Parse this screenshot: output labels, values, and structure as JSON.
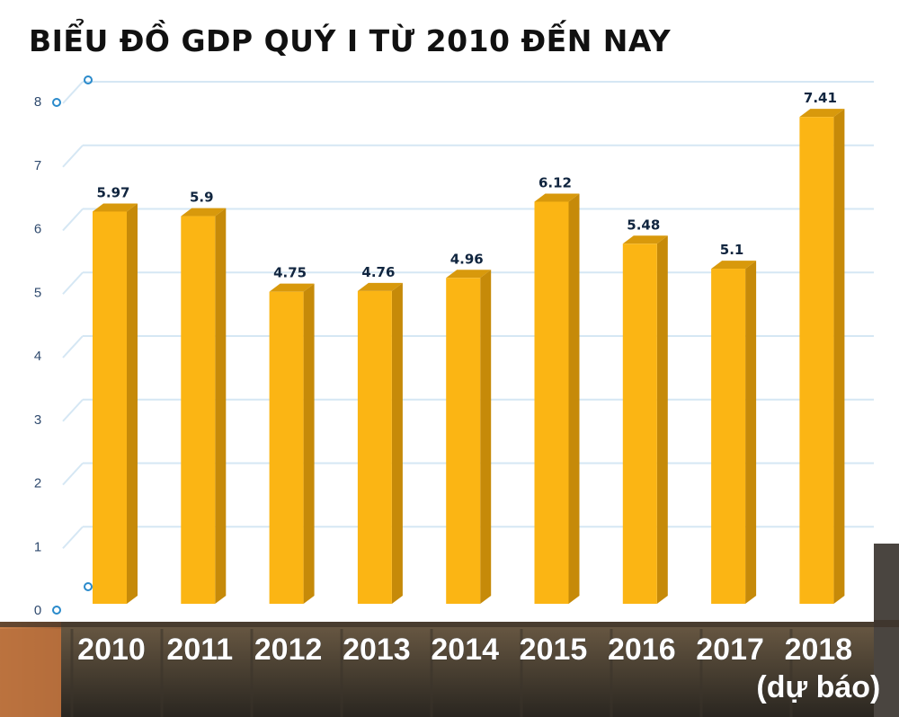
{
  "chart_data": {
    "type": "bar",
    "title": "BIỂU ĐỒ GDP QUÝ I TỪ 2010 ĐẾN NAY",
    "categories": [
      "2010",
      "2011",
      "2012",
      "2013",
      "2014",
      "2015",
      "2016",
      "2017",
      "2018"
    ],
    "category_notes": [
      "",
      "",
      "",
      "",
      "",
      "",
      "",
      "",
      "(dự báo)"
    ],
    "values": [
      5.97,
      5.9,
      4.75,
      4.76,
      4.96,
      6.12,
      5.48,
      5.1,
      7.41
    ],
    "value_labels": [
      "5.97",
      "5.9",
      "4.75",
      "4.76",
      "4.96",
      "6.12",
      "5.48",
      "5.1",
      "7.41"
    ],
    "ylim": [
      0,
      8
    ],
    "yticks": [
      "0",
      "1",
      "2",
      "3",
      "4",
      "5",
      "6",
      "7",
      "8"
    ],
    "grid": true,
    "colors": {
      "bar_front": "#fbb514",
      "bar_side": "#c68a09",
      "bar_top": "#d8990c",
      "grid": "#d5e7f4",
      "title": "#111111"
    }
  }
}
